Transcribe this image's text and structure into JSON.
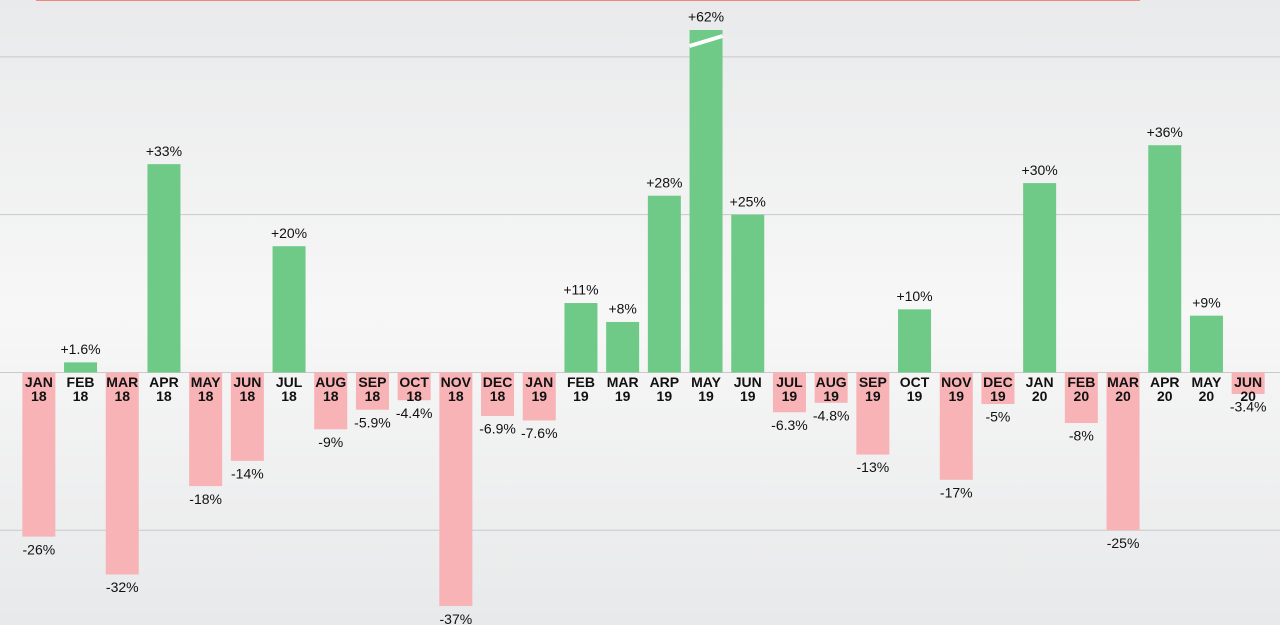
{
  "chart_data": {
    "type": "bar",
    "categories": [
      "JAN\n18",
      "FEB\n18",
      "MAR\n18",
      "APR\n18",
      "MAY\n18",
      "JUN\n18",
      "JUL\n18",
      "AUG\n18",
      "SEP\n18",
      "OCT\n18",
      "NOV\n18",
      "DEC\n18",
      "JAN\n19",
      "FEB\n19",
      "MAR\n19",
      "ARP\n19",
      "MAY\n19",
      "JUN\n19",
      "JUL\n19",
      "AUG\n19",
      "SEP\n19",
      "OCT\n19",
      "NOV\n19",
      "DEC\n19",
      "JAN\n20",
      "FEB\n20",
      "MAR\n20",
      "APR\n20",
      "MAY\n20",
      "JUN\n20"
    ],
    "values": [
      -26,
      1.6,
      -32,
      33,
      -18,
      -14,
      20,
      -9,
      -5.9,
      -4.4,
      -37,
      -6.9,
      -7.6,
      11,
      8,
      28,
      62,
      25,
      -6.3,
      -4.8,
      -13,
      10,
      -17,
      -5,
      30,
      -8,
      -25,
      36,
      9,
      -3.4
    ],
    "value_labels": [
      "-26%",
      "+1.6%",
      "-32%",
      "+33%",
      "-18%",
      "-14%",
      "+20%",
      "-9%",
      "-5.9%",
      "-4.4%",
      "-37%",
      "-6.9%",
      "-7.6%",
      "+11%",
      "+8%",
      "+28%",
      "+62%",
      "+25%",
      "-6.3%",
      "-4.8%",
      "-13%",
      "+10%",
      "-17%",
      "-5%",
      "+30%",
      "-8%",
      "-25%",
      "+36%",
      "+9%",
      "-3.4%"
    ],
    "positive_color": "#6fc987",
    "negative_color": "#f7b3b6",
    "ylim": [
      -40,
      59
    ],
    "yticks": [
      -25,
      0,
      25,
      50
    ],
    "grid": true
  }
}
